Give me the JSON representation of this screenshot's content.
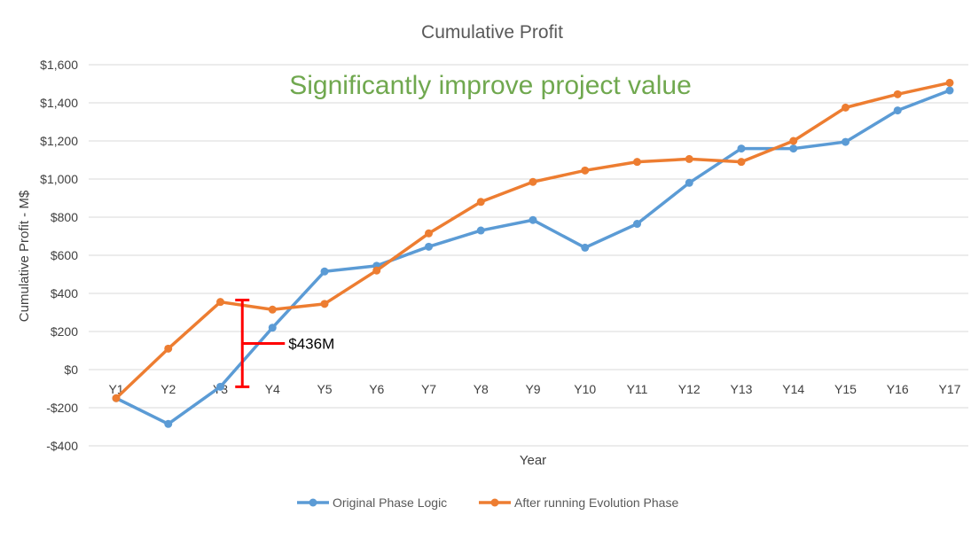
{
  "chart_data": {
    "type": "line",
    "title": "Cumulative Profit",
    "xlabel": "Year",
    "ylabel": "Cumulative Profit - M$",
    "categories": [
      "Y1",
      "Y2",
      "Y3",
      "Y4",
      "Y5",
      "Y6",
      "Y7",
      "Y8",
      "Y9",
      "Y10",
      "Y11",
      "Y12",
      "Y13",
      "Y14",
      "Y15",
      "Y16",
      "Y17"
    ],
    "ylim": [
      -400,
      1600
    ],
    "yticks": [
      -400,
      -200,
      0,
      200,
      400,
      600,
      800,
      1000,
      1200,
      1400,
      1600
    ],
    "ytick_labels": [
      "-$400",
      "-$200",
      "$0",
      "$200",
      "$400",
      "$600",
      "$800",
      "$1,000",
      "$1,200",
      "$1,400",
      "$1,600"
    ],
    "grid": true,
    "legend_position": "bottom",
    "series": [
      {
        "name": "Original Phase Logic",
        "color": "#5b9bd5",
        "values": [
          -150,
          -285,
          -90,
          220,
          515,
          545,
          645,
          730,
          785,
          640,
          765,
          980,
          1160,
          1160,
          1195,
          1360,
          1465
        ]
      },
      {
        "name": "After running Evolution Phase",
        "color": "#ed7d31",
        "values": [
          -150,
          110,
          355,
          315,
          345,
          520,
          715,
          880,
          985,
          1045,
          1090,
          1105,
          1090,
          1200,
          1375,
          1445,
          1505
        ]
      }
    ],
    "annotations": [
      {
        "text": "Significantly improve project value",
        "color": "#70a84f"
      },
      {
        "text": "$436M",
        "category": "Y4",
        "range": [
          -90,
          365
        ],
        "color": "#ff0000"
      }
    ]
  }
}
